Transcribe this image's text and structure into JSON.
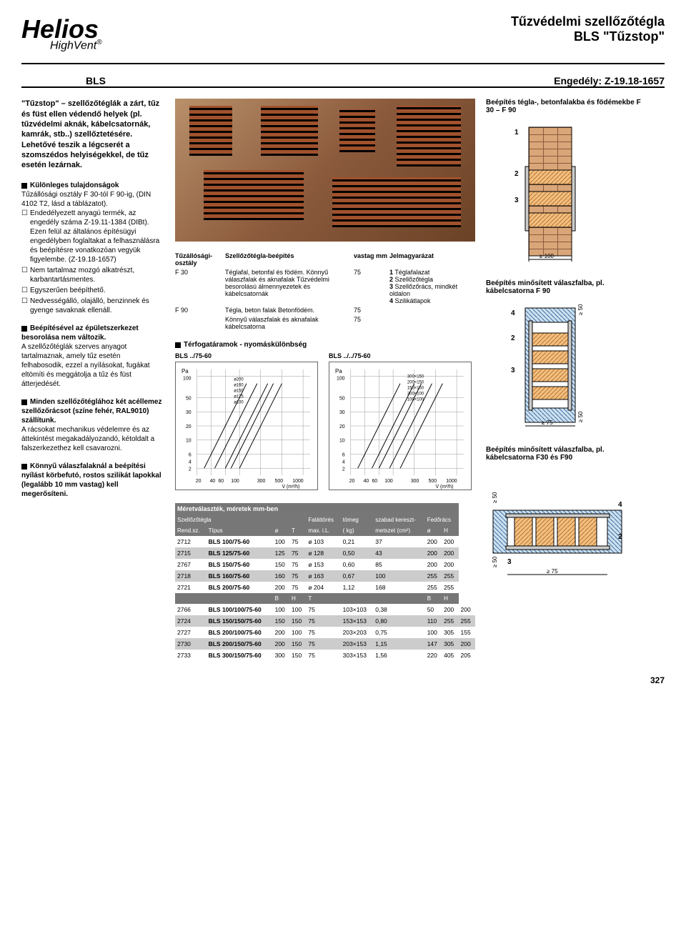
{
  "header": {
    "logo": "Helios",
    "logo_sub": "HighVent",
    "title_line1": "Tűzvédelmi szellőzőtégla",
    "title_line2": "BLS \"Tűzstop\""
  },
  "bls_row": {
    "label": "BLS",
    "engedely": "Engedély: Z-19.18-1657"
  },
  "intro": "\"Tűzstop\" – szellőzőtéglák a zárt, tűz és füst ellen védendő helyek (pl. tűzvédelmi aknák, kábelcsatornák, kamrák, stb..) szellőztetésére. Lehetővé teszik a légcserét a szomszédos helyiségekkel, de tűz esetén lezárnak.",
  "prop_title": "Különleges tulajdonságok",
  "prop_body": "Tűzállósági osztály F 30-tól F 90-ig, (DIN 4102 T2, lásd a táblázatot).",
  "prop_items": [
    "Endedélyezett anyagú termék, az engedély száma Z-19.11-1384 (DIBt). Ezen felül az általános építésügyi engedélyben foglaltakat a felhasználásra és beépítésre vonatkozóan vegyük figyelembe. (Z-19.18-1657)",
    "Nem tartalmaz mozgó alkatrészt, karbantartásmentes.",
    "Egyszerűen beépíthető.",
    "Nedvességálló, olajálló, benzinnek és gyenge savaknak ellenáll."
  ],
  "struct_title": "Beépítésével az épületszerkezet besorolása nem változik.",
  "struct_body": "A szellőzőtéglák szerves anyagot tartalmaznak, amely tűz esetén felhabosodik, ezzel a nyílásokat, fugákat eltömíti és meggátolja a tűz és füst átterjedését.",
  "grille_title": "Minden szellőzőtéglához két acéllemez szellőzőrácsot (színe fehér, RAL9010) szállítunk.",
  "grille_body": "A rácsokat mechanikus védelemre és az áttekintést megakadályozandó, kétoldalt a falszerkezethez kell csavarozni.",
  "light_title": "Könnyű válaszfalaknál a beépítési nyílást körbefutó, rostos szilikát lapokkal (legalább 10 mm vastag) kell megerősíteni.",
  "spec": {
    "headers": [
      "Tűzállósági-osztály",
      "Szellőzőtégla-beépítés",
      "vastag mm",
      "Jelmagyarázat"
    ],
    "rows": [
      {
        "class": "F 30",
        "desc": "Téglafal, betonfal és födém. Könnyű válaszfalak és aknafalak Tűzvédelmi besorolású álmennyezetek és kábelcsatornák",
        "thick": "75",
        "legend": ""
      },
      {
        "class": "F 90",
        "desc": "Tégla, beton falak Betonfödém.",
        "thick": "75",
        "legend": ""
      },
      {
        "class": "",
        "desc": "Könnyű válaszfalak és aknafalak kábelcsatorna",
        "thick": "75",
        "legend": ""
      }
    ],
    "legend": [
      "Téglafalazat",
      "Szellőzőtégla",
      "Szellőzőrács, mindkét oldalon",
      "Szilikátlapok"
    ]
  },
  "flow_title": "Térfogatáramok - nyomáskülönbség",
  "chart1": {
    "title": "BLS ../75-60",
    "y_label": "Pa",
    "x_label": "V̇ (m³/h)",
    "y_ticks": [
      2,
      4,
      6,
      10,
      20,
      30,
      50,
      100
    ],
    "x_ticks": [
      20,
      40,
      60,
      100,
      300,
      500,
      1000
    ],
    "series": [
      "ø100",
      "ø125",
      "ø150",
      "ø160",
      "ø200"
    ]
  },
  "chart2": {
    "title": "BLS ../../75-60",
    "y_label": "Pa",
    "x_label": "V̇ (m³/h)",
    "y_ticks": [
      2,
      4,
      6,
      10,
      20,
      30,
      50,
      100
    ],
    "x_ticks": [
      20,
      40,
      60,
      100,
      300,
      500,
      1000
    ],
    "series": [
      "100×100",
      "200×100",
      "150×150",
      "200×150",
      "300×150"
    ]
  },
  "size_table": {
    "title": "Méretválaszték, méretek mm-ben",
    "headers1": [
      "Szellőzőtégla",
      "",
      "",
      "Faláttörés",
      "tömeg",
      "szabad kereszt-",
      "Fedőrács",
      ""
    ],
    "headers2": [
      "Rend.sz.",
      "Típus",
      "ø",
      "T",
      "max. i.L.",
      "( kg)",
      "metszet (cm²)",
      "ø",
      "H"
    ],
    "rows": [
      [
        "2712",
        "BLS 100/75-60",
        "100",
        "75",
        "ø 103",
        "0,21",
        "37",
        "200",
        "200"
      ],
      [
        "2715",
        "BLS 125/75-60",
        "125",
        "75",
        "ø 128",
        "0,50",
        "43",
        "200",
        "200"
      ],
      [
        "2767",
        "BLS 150/75-60",
        "150",
        "75",
        "ø 153",
        "0,60",
        "85",
        "200",
        "200"
      ],
      [
        "2718",
        "BLS 160/75-60",
        "160",
        "75",
        "ø 163",
        "0,67",
        "100",
        "255",
        "255"
      ],
      [
        "2721",
        "BLS 200/75-60",
        "200",
        "75",
        "ø 204",
        "1,12",
        "168",
        "255",
        "255"
      ]
    ],
    "headers3": [
      "",
      "",
      "B",
      "H",
      "T",
      "",
      "",
      "B",
      "H"
    ],
    "rows2": [
      [
        "2766",
        "BLS 100/100/75-60",
        "100",
        "100",
        "75",
        "103×103",
        "0,38",
        "50",
        "200",
        "200"
      ],
      [
        "2724",
        "BLS 150/150/75-60",
        "150",
        "150",
        "75",
        "153×153",
        "0,80",
        "110",
        "255",
        "255"
      ],
      [
        "2727",
        "BLS 200/100/75-60",
        "200",
        "100",
        "75",
        "203×203",
        "0,75",
        "100",
        "305",
        "155"
      ],
      [
        "2730",
        "BLS 200/150/75-60",
        "200",
        "150",
        "75",
        "203×153",
        "1,15",
        "147",
        "305",
        "200"
      ],
      [
        "2733",
        "BLS 300/150/75-60",
        "300",
        "150",
        "75",
        "303×153",
        "1,56",
        "220",
        "405",
        "205"
      ]
    ]
  },
  "diagrams": {
    "d1_title": "Beépítés tégla-, betonfalakba és födémekbe F 30 – F 90",
    "d1_labels": [
      "1",
      "2",
      "3"
    ],
    "d1_dim": "≥ 100",
    "d2_title": "Beépítés minősített válaszfalba, pl. kábelcsatorna F 90",
    "d2_labels": [
      "4",
      "2",
      "3"
    ],
    "d2_dim1": "≥ 50",
    "d2_dim2": "≥ 50",
    "d2_dim3": "≥ 75",
    "d3_title": "Beépítés minősített válaszfalba, pl. kábelcsatorna F30 és F90",
    "d3_labels": [
      "4",
      "2",
      "3"
    ],
    "d3_dim1": "≥ 50",
    "d3_dim2": "≥ 50",
    "d3_dim3": "≥ 75"
  },
  "colors": {
    "brick": "#d9a679",
    "brick_dark": "#8b5a3c",
    "hatch_orange": "#e8a050",
    "hatch_blue": "#6090c0",
    "gray_header": "#888888",
    "gray_alt": "#cccccc"
  },
  "page_num": "327"
}
